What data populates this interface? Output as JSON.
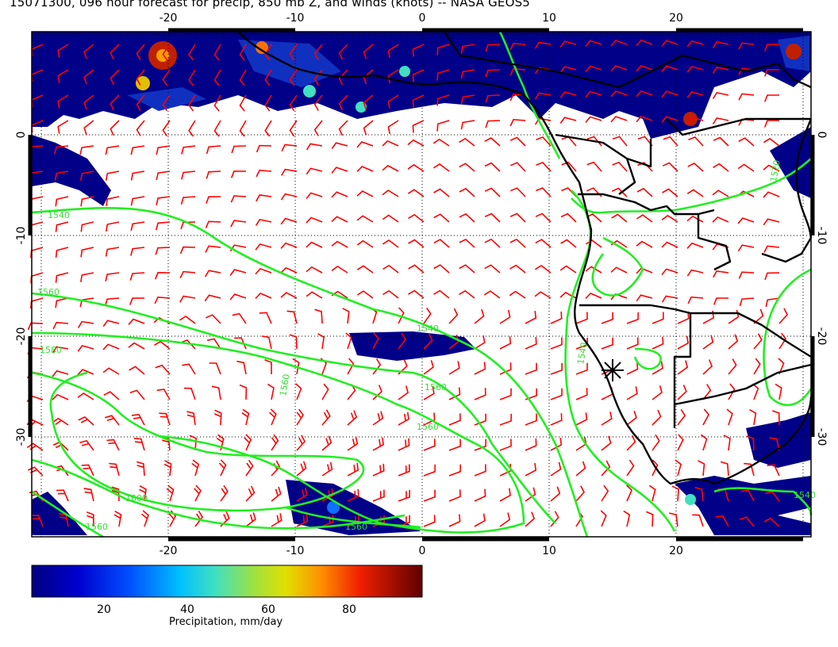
{
  "title": "15071300, 096 hour forecast for precip, 850 mb Z, and winds (knots) -- NASA GEOS5",
  "map": {
    "lon_range": [
      -30,
      30
    ],
    "lat_range": [
      -40,
      10
    ],
    "graticule": "dotted",
    "x_ticks": [
      "-20",
      "-10",
      "0",
      "10",
      "20"
    ],
    "y_ticks": [
      "0",
      "-10",
      "-20",
      "-30"
    ],
    "contour_labels": [
      "1520",
      "1540",
      "1560",
      "1540",
      "1560",
      "1560",
      "1600",
      "1560",
      "1560",
      "1580",
      "1540",
      "1560",
      "1540"
    ],
    "colors": {
      "coastline": "#000000",
      "contour": "#22ee22",
      "wind_barb": "#ff0000",
      "precip_low": "#000080",
      "precip_high": "#7a0000"
    }
  },
  "colorbar": {
    "title": "Precipitation, mm/day",
    "ticks": [
      "20",
      "40",
      "60",
      "80"
    ],
    "range": [
      0,
      100
    ]
  }
}
